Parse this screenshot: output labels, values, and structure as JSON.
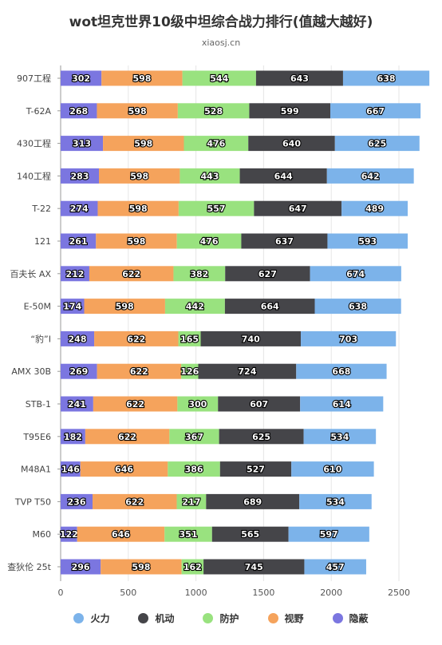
{
  "chart_data": {
    "type": "bar",
    "orientation": "horizontal",
    "stacked": true,
    "title": "wot坦克世界10级中坦综合战力排行(值越大越好)",
    "subtitle": "xiaosj.cn",
    "categories": [
      "907工程",
      "T-62A",
      "430工程",
      "140工程",
      "T-22",
      "121",
      "百夫长 AX",
      "E-50M",
      "“豹”I",
      "AMX 30B",
      "STB-1",
      "T95E6",
      "M48A1",
      "TVP T50",
      "M60",
      "查狄伦 25t"
    ],
    "series": [
      {
        "name": "隐蔽",
        "color": "#7b76e0",
        "values": [
          302,
          268,
          313,
          283,
          274,
          261,
          212,
          174,
          248,
          269,
          241,
          182,
          146,
          236,
          122,
          296
        ]
      },
      {
        "name": "视野",
        "color": "#f5a35c",
        "values": [
          598,
          598,
          598,
          598,
          598,
          598,
          622,
          598,
          622,
          622,
          622,
          622,
          646,
          622,
          646,
          598
        ]
      },
      {
        "name": "防护",
        "color": "#99e27f",
        "values": [
          544,
          528,
          476,
          443,
          557,
          476,
          382,
          442,
          165,
          126,
          300,
          367,
          386,
          217,
          351,
          162
        ]
      },
      {
        "name": "机动",
        "color": "#454549",
        "values": [
          643,
          599,
          640,
          644,
          647,
          637,
          627,
          664,
          740,
          724,
          607,
          625,
          527,
          689,
          565,
          745
        ]
      },
      {
        "name": "火力",
        "color": "#7cb3ea",
        "values": [
          638,
          667,
          625,
          642,
          489,
          593,
          674,
          638,
          703,
          668,
          614,
          534,
          610,
          534,
          597,
          457
        ]
      }
    ],
    "legend_order": [
      "火力",
      "机动",
      "防护",
      "视野",
      "隐蔽"
    ],
    "xlim": [
      0,
      2500
    ],
    "xticks": [
      0,
      500,
      1000,
      1500,
      2000,
      2500
    ],
    "grid": true,
    "legend_position": "bottom"
  }
}
